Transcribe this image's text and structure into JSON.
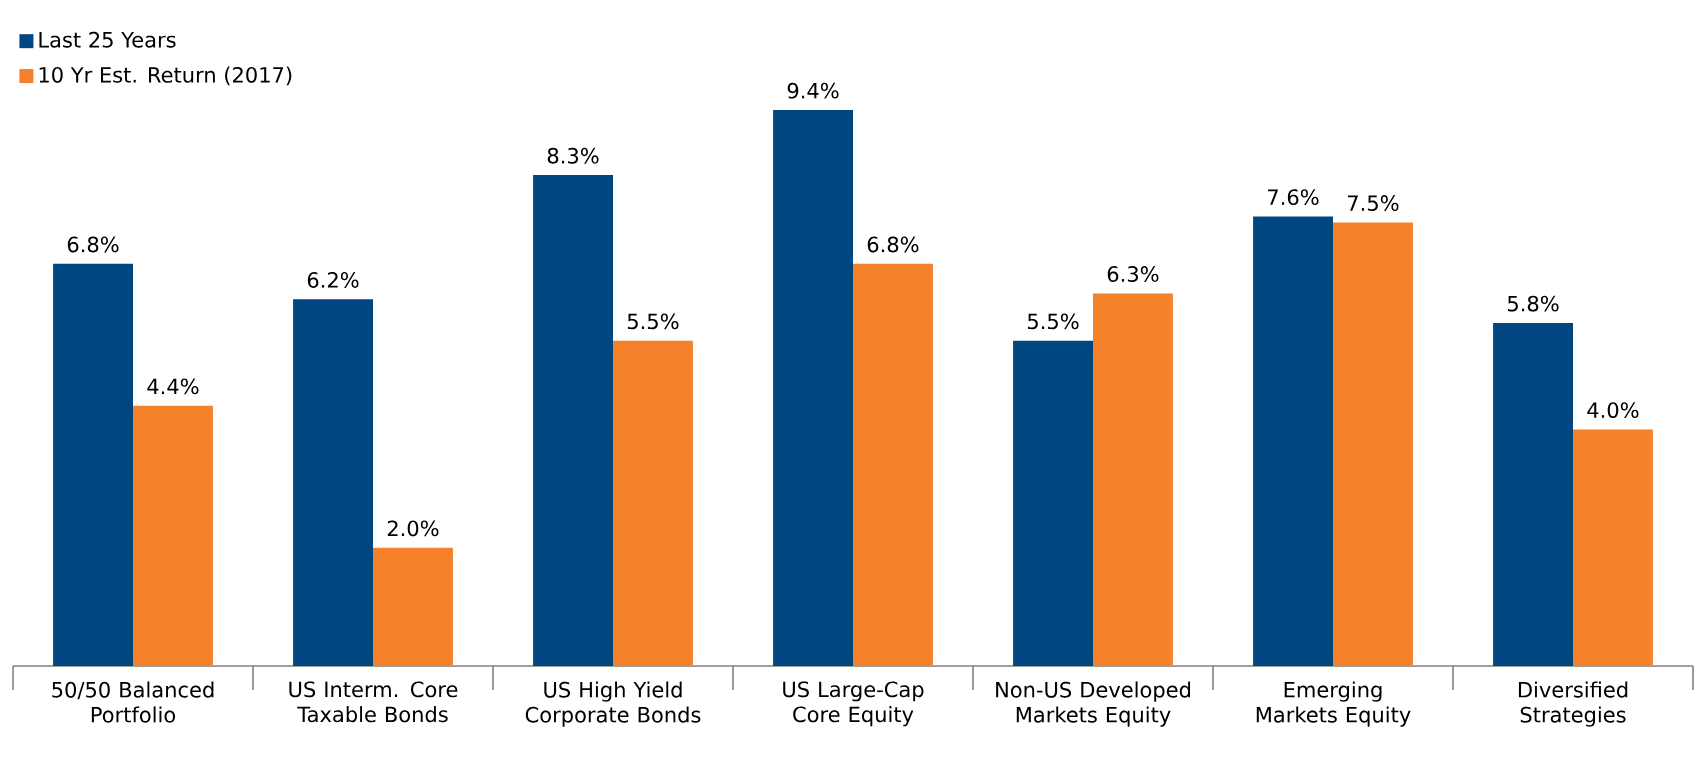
{
  "chart_data": {
    "type": "bar",
    "categories": [
      "50/50 Balanced Portfolio",
      "US Interm. Core Taxable Bonds",
      "US High Yield Corporate Bonds",
      "US Large-Cap Core Equity",
      "Non-US Developed Markets Equity",
      "Emerging Markets Equity",
      "Diversified Strategies"
    ],
    "series": [
      {
        "name": "Last 25 Years",
        "color": "#004680",
        "values": [
          6.8,
          6.2,
          8.3,
          9.4,
          5.5,
          7.6,
          5.8
        ],
        "value_labels": [
          "6.8%",
          "6.2%",
          "8.3%",
          "9.4%",
          "5.5%",
          "7.6%",
          "5.8%"
        ]
      },
      {
        "name": "10 Yr Est. Return (2017)",
        "color": "#f5822a",
        "values": [
          4.4,
          2.0,
          5.5,
          6.8,
          6.3,
          7.5,
          4.0
        ],
        "value_labels": [
          "4.4%",
          "2.0%",
          "5.5%",
          "6.8%",
          "6.3%",
          "7.5%",
          "4.0%"
        ]
      }
    ],
    "ylim": [
      0,
      9.4
    ],
    "tick_labels": "x",
    "legend": "top left"
  }
}
